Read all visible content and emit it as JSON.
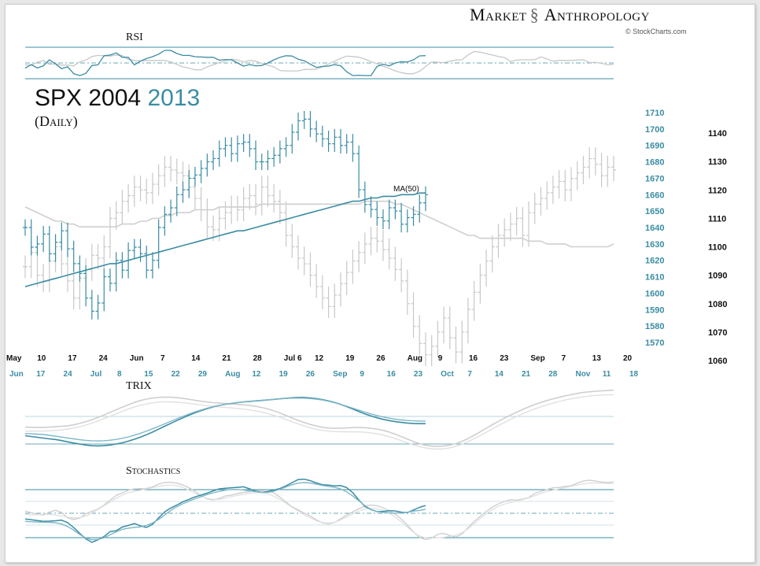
{
  "header": {
    "brand_left": "Market",
    "brand_right": "Anthropology",
    "credit": "© StockCharts.com"
  },
  "title": {
    "prefix": "SPX 2004",
    "year_2013": "2013"
  },
  "subtitle": "(Daily)",
  "panes": {
    "rsi": "RSI",
    "trix": "TRIX",
    "stochastics": "Stochastics"
  },
  "ma_label": "MA(50)",
  "colors": {
    "series_2013": "#3a8ca3",
    "series_2004": "#c8c8c8",
    "axis_2013": "#3a8ca3",
    "axis_2004": "#111111"
  },
  "chart_data": {
    "type": "ohlc",
    "title": "SPX 2004 2013",
    "axis_2004": {
      "ylim": [
        1060,
        1140
      ],
      "ticks": [
        1060,
        1070,
        1080,
        1090,
        1100,
        1110,
        1120,
        1130,
        1140
      ],
      "x_labels": [
        "May",
        "10",
        "17",
        "24",
        "Jun",
        "7",
        "14",
        "21",
        "28",
        "Jul 6",
        "12",
        "19",
        "26",
        "Aug",
        "9",
        "16",
        "23",
        "Sep",
        "7",
        "13",
        "20"
      ]
    },
    "axis_2013": {
      "ylim": [
        1570,
        1710
      ],
      "ticks": [
        1570,
        1580,
        1590,
        1600,
        1610,
        1620,
        1630,
        1640,
        1650,
        1660,
        1670,
        1680,
        1690,
        1700,
        1710
      ],
      "x_labels": [
        "Jun",
        "17",
        "24",
        "Jul",
        "8",
        "15",
        "22",
        "29",
        "Aug",
        "12",
        "19",
        "26",
        "Sep",
        "9",
        "16",
        "23",
        "Oct",
        "7",
        "14",
        "21",
        "28",
        "Nov",
        "11",
        "18"
      ]
    },
    "series": [
      {
        "name": "2004",
        "axis": "axis_2004",
        "close": [
          1093,
          1098,
          1090,
          1088,
          1095,
          1100,
          1094,
          1088,
          1082,
          1089,
          1092,
          1097,
          1096,
          1100,
          1110,
          1112,
          1116,
          1118,
          1121,
          1120,
          1119,
          1122,
          1125,
          1128,
          1127,
          1126,
          1125,
          1121,
          1117,
          1113,
          1107,
          1106,
          1110,
          1112,
          1114,
          1113,
          1117,
          1118,
          1115,
          1121,
          1118,
          1116,
          1112,
          1104,
          1100,
          1096,
          1094,
          1090,
          1086,
          1082,
          1079,
          1083,
          1087,
          1091,
          1095,
          1098,
          1101,
          1103,
          1102,
          1099,
          1096,
          1092,
          1088,
          1080,
          1072,
          1066,
          1062,
          1065,
          1070,
          1075,
          1068,
          1063,
          1070,
          1078,
          1084,
          1090,
          1095,
          1100,
          1104,
          1106,
          1108,
          1110,
          1104,
          1112,
          1115,
          1117,
          1119,
          1121,
          1123,
          1120,
          1124,
          1126,
          1128,
          1131,
          1129,
          1125,
          1128,
          1127
        ],
        "ma50": [
          1114,
          1113,
          1112,
          1111,
          1110,
          1109,
          1109,
          1108,
          1108,
          1107,
          1107,
          1107,
          1107,
          1107,
          1107,
          1107,
          1108,
          1108,
          1108,
          1109,
          1109,
          1110,
          1110,
          1111,
          1111,
          1112,
          1112,
          1112,
          1113,
          1113,
          1113,
          1113,
          1114,
          1114,
          1114,
          1114,
          1114,
          1114,
          1114,
          1115,
          1115,
          1115,
          1115,
          1115,
          1115,
          1115,
          1115,
          1115,
          1115,
          1115,
          1115,
          1115,
          1115,
          1115,
          1115,
          1115,
          1116,
          1116,
          1116,
          1116,
          1116,
          1115,
          1115,
          1114,
          1113,
          1112,
          1111,
          1110,
          1109,
          1108,
          1107,
          1106,
          1105,
          1104,
          1104,
          1103,
          1103,
          1103,
          1103,
          1103,
          1103,
          1103,
          1103,
          1102,
          1102,
          1102,
          1101,
          1101,
          1101,
          1101,
          1100,
          1100,
          1100,
          1100,
          1100,
          1100,
          1100,
          1101
        ]
      },
      {
        "name": "2013",
        "axis": "axis_2013",
        "close": [
          1640,
          1628,
          1630,
          1636,
          1624,
          1631,
          1638,
          1627,
          1618,
          1612,
          1597,
          1589,
          1594,
          1610,
          1606,
          1620,
          1614,
          1626,
          1628,
          1624,
          1614,
          1620,
          1640,
          1648,
          1652,
          1660,
          1663,
          1670,
          1672,
          1676,
          1680,
          1682,
          1688,
          1690,
          1685,
          1691,
          1692,
          1688,
          1680,
          1680,
          1682,
          1684,
          1688,
          1690,
          1698,
          1705,
          1706,
          1700,
          1697,
          1694,
          1691,
          1695,
          1690,
          1692,
          1685,
          1663,
          1654,
          1651,
          1646,
          1644,
          1652,
          1650,
          1642,
          1646,
          1648,
          1655,
          1660
        ],
        "ma50": [
          1604,
          1605,
          1606,
          1607,
          1608,
          1609,
          1610,
          1611,
          1612,
          1613,
          1614,
          1615,
          1616,
          1617,
          1618,
          1618,
          1619,
          1620,
          1621,
          1622,
          1623,
          1624,
          1625,
          1626,
          1627,
          1628,
          1629,
          1630,
          1631,
          1632,
          1633,
          1634,
          1635,
          1636,
          1637,
          1638,
          1638,
          1639,
          1640,
          1641,
          1642,
          1643,
          1644,
          1645,
          1646,
          1647,
          1648,
          1649,
          1650,
          1651,
          1652,
          1653,
          1654,
          1655,
          1656,
          1656,
          1657,
          1658,
          1658,
          1659,
          1659,
          1659,
          1660,
          1660,
          1660,
          1661,
          1661
        ]
      }
    ]
  }
}
